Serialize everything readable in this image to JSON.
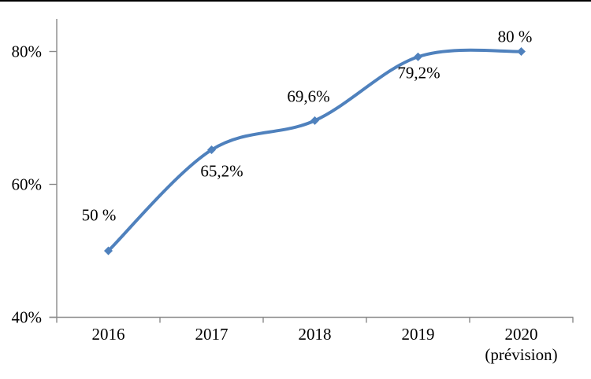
{
  "chart_data": {
    "type": "line",
    "title": "",
    "categories": [
      "2016",
      "2017",
      "2018",
      "2019",
      "2020"
    ],
    "category_sublabels": [
      "",
      "",
      "",
      "",
      "(prévision)"
    ],
    "series": [
      {
        "values": [
          50,
          65.2,
          69.6,
          79.2,
          80
        ],
        "point_labels": [
          "50 %",
          "65,2%",
          "69,6%",
          "79,2%",
          "80 %"
        ],
        "color": "#4F81BD",
        "marker": "diamond",
        "smooth": true
      }
    ],
    "y_axis": {
      "tick_labels": [
        "40%",
        "60%",
        "80%"
      ],
      "tick_values": [
        40,
        60,
        80
      ],
      "range": [
        40,
        85
      ]
    },
    "x_axis": {
      "tick_count": 5
    },
    "grid": false,
    "legend": "none",
    "axis_color": "#8A8A8A",
    "text_color": "#000000",
    "background_color": "#FFFFFF",
    "top_border_color": "#000000"
  }
}
